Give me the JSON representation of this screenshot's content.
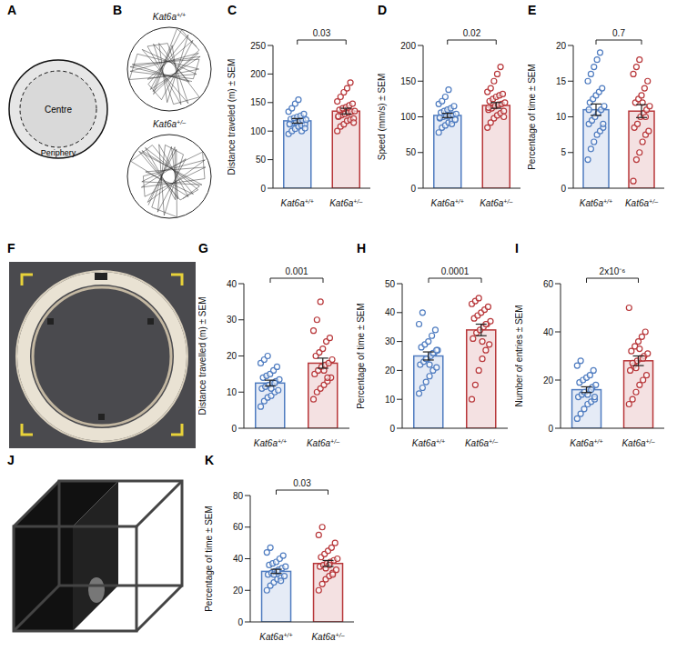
{
  "chart_data": [
    {
      "panel": "C",
      "type": "bar",
      "categories": [
        "Kat6a+/+",
        "Kat6a+/–"
      ],
      "values": [
        118,
        135
      ],
      "errors": [
        4,
        5
      ],
      "colors": [
        "#4f7cc0",
        "#b8373a"
      ],
      "ylabel": "Distance traveled (m) ± SEM",
      "ylim": [
        0,
        250
      ],
      "yticks": [
        0,
        50,
        100,
        150,
        200,
        250
      ],
      "annotation": "0.03",
      "points": [
        [
          95,
          100,
          104,
          108,
          110,
          112,
          113,
          115,
          116,
          118,
          119,
          120,
          121,
          123,
          125,
          127,
          130,
          134,
          140,
          148,
          155,
          100,
          105,
          112
        ],
        [
          100,
          108,
          112,
          118,
          120,
          122,
          125,
          128,
          130,
          132,
          134,
          135,
          137,
          140,
          142,
          145,
          148,
          152,
          160,
          168,
          175,
          185,
          115,
          126
        ]
      ]
    },
    {
      "panel": "D",
      "type": "bar",
      "categories": [
        "Kat6a+/+",
        "Kat6a+/–"
      ],
      "values": [
        102,
        116
      ],
      "errors": [
        3,
        4
      ],
      "colors": [
        "#4f7cc0",
        "#b8373a"
      ],
      "ylabel": "Speed (mm/s) ± SEM",
      "ylim": [
        0,
        200
      ],
      "yticks": [
        0,
        50,
        100,
        150,
        200
      ],
      "annotation": "0.02",
      "points": [
        [
          78,
          85,
          88,
          92,
          95,
          97,
          98,
          100,
          101,
          102,
          103,
          104,
          106,
          108,
          110,
          112,
          115,
          118,
          122,
          128,
          138,
          90,
          96,
          99
        ],
        [
          85,
          92,
          98,
          102,
          105,
          108,
          110,
          112,
          115,
          117,
          118,
          120,
          122,
          125,
          128,
          130,
          132,
          135,
          140,
          150,
          160,
          170,
          100,
          113
        ]
      ]
    },
    {
      "panel": "E",
      "type": "bar",
      "categories": [
        "Kat6a+/+",
        "Kat6a+/–"
      ],
      "values": [
        11,
        10.8
      ],
      "errors": [
        0.8,
        0.9
      ],
      "colors": [
        "#4f7cc0",
        "#b8373a"
      ],
      "ylabel": "Percentage of time ± SEM",
      "ylim": [
        0,
        20
      ],
      "yticks": [
        0,
        5,
        10,
        15,
        20
      ],
      "annotation": "0.7",
      "points": [
        [
          4,
          5.5,
          6.5,
          7.5,
          8,
          8.5,
          9,
          9.5,
          10,
          10.5,
          11,
          11.5,
          12,
          12.5,
          13,
          13.5,
          14,
          15,
          16,
          17,
          18,
          19,
          9,
          11
        ],
        [
          1,
          4,
          5,
          6.5,
          7.5,
          8,
          8.5,
          9,
          10,
          10.5,
          11,
          11.5,
          12,
          12.5,
          13,
          14,
          15,
          16,
          17,
          18,
          12,
          10
        ]
      ]
    },
    {
      "panel": "G",
      "type": "bar",
      "categories": [
        "Kat6a+/+",
        "Kat6a+/–"
      ],
      "values": [
        12.5,
        18
      ],
      "errors": [
        0.8,
        1.4
      ],
      "colors": [
        "#4f7cc0",
        "#b8373a"
      ],
      "ylabel": "Distance travelled (m) ± SEM",
      "ylim": [
        0,
        40
      ],
      "yticks": [
        0,
        10,
        20,
        30,
        40
      ],
      "annotation": "0.001",
      "points": [
        [
          6,
          7.5,
          8.5,
          9,
          10,
          10.5,
          11,
          11.5,
          12,
          12.5,
          13,
          13.5,
          14,
          14.5,
          15,
          16,
          17,
          18,
          19,
          20,
          11,
          12.5
        ],
        [
          8,
          10,
          11,
          12,
          13,
          14,
          15,
          16,
          17,
          17.5,
          18,
          19,
          20,
          21,
          22,
          24,
          25,
          27,
          30,
          35,
          16,
          14
        ]
      ]
    },
    {
      "panel": "H",
      "type": "bar",
      "categories": [
        "Kat6a+/+",
        "Kat6a+/–"
      ],
      "values": [
        25,
        34
      ],
      "errors": [
        1.4,
        2
      ],
      "colors": [
        "#4f7cc0",
        "#b8373a"
      ],
      "ylabel": "Percentage of time ± SEM",
      "ylim": [
        0,
        50
      ],
      "yticks": [
        0,
        10,
        20,
        30,
        40,
        50
      ],
      "annotation": "0.0001",
      "points": [
        [
          12,
          14,
          16,
          18,
          20,
          21,
          22,
          23,
          24,
          25,
          26,
          27,
          28,
          29,
          30,
          32,
          34,
          36,
          40,
          24,
          22,
          26,
          27
        ],
        [
          10,
          15,
          20,
          24,
          27,
          29,
          31,
          33,
          34,
          35,
          36,
          37,
          38,
          39,
          40,
          41,
          42,
          43,
          44,
          45,
          30,
          36
        ]
      ]
    },
    {
      "panel": "I",
      "type": "bar",
      "categories": [
        "Kat6a+/+",
        "Kat6a+/–"
      ],
      "values": [
        16,
        28
      ],
      "errors": [
        1.2,
        2
      ],
      "colors": [
        "#4f7cc0",
        "#b8373a"
      ],
      "ylabel": "Number of entries ± SEM",
      "ylim": [
        0,
        60
      ],
      "yticks": [
        0,
        20,
        40,
        60
      ],
      "annotation": "2x10⁻⁶",
      "points": [
        [
          4,
          6,
          8,
          10,
          11,
          12,
          13,
          14,
          15,
          16,
          17,
          18,
          19,
          20,
          21,
          22,
          24,
          26,
          28,
          15,
          14,
          16,
          13
        ],
        [
          10,
          12,
          15,
          18,
          20,
          22,
          24,
          26,
          28,
          29,
          30,
          31,
          32,
          34,
          36,
          38,
          40,
          50,
          27,
          25,
          33,
          29
        ]
      ]
    },
    {
      "panel": "K",
      "type": "bar",
      "categories": [
        "Kat6a+/+",
        "Kat6a+/–"
      ],
      "values": [
        32,
        37
      ],
      "errors": [
        1.3,
        1.9
      ],
      "colors": [
        "#4f7cc0",
        "#b8373a"
      ],
      "ylabel": "Percentage of time ± SEM",
      "ylim": [
        0,
        80
      ],
      "yticks": [
        0,
        20,
        40,
        60,
        80
      ],
      "annotation": "0.03",
      "points": [
        [
          20,
          23,
          25,
          27,
          28,
          29,
          30,
          31,
          32,
          33,
          34,
          35,
          36,
          37,
          38,
          40,
          42,
          44,
          47,
          30,
          32,
          26
        ],
        [
          20,
          24,
          27,
          29,
          31,
          33,
          35,
          36,
          37,
          38,
          39,
          40,
          41,
          43,
          45,
          47,
          50,
          55,
          60,
          34,
          36,
          30
        ]
      ]
    }
  ],
  "diagrams": [
    {
      "panel": "A",
      "type": "diagram",
      "labels": [
        "Centre",
        "Periphery"
      ]
    },
    {
      "panel": "B",
      "type": "diagram",
      "labels": [
        "Kat6a+/+",
        "Kat6a+/–"
      ]
    },
    {
      "panel": "F",
      "type": "photo"
    },
    {
      "panel": "J",
      "type": "diagram"
    }
  ]
}
